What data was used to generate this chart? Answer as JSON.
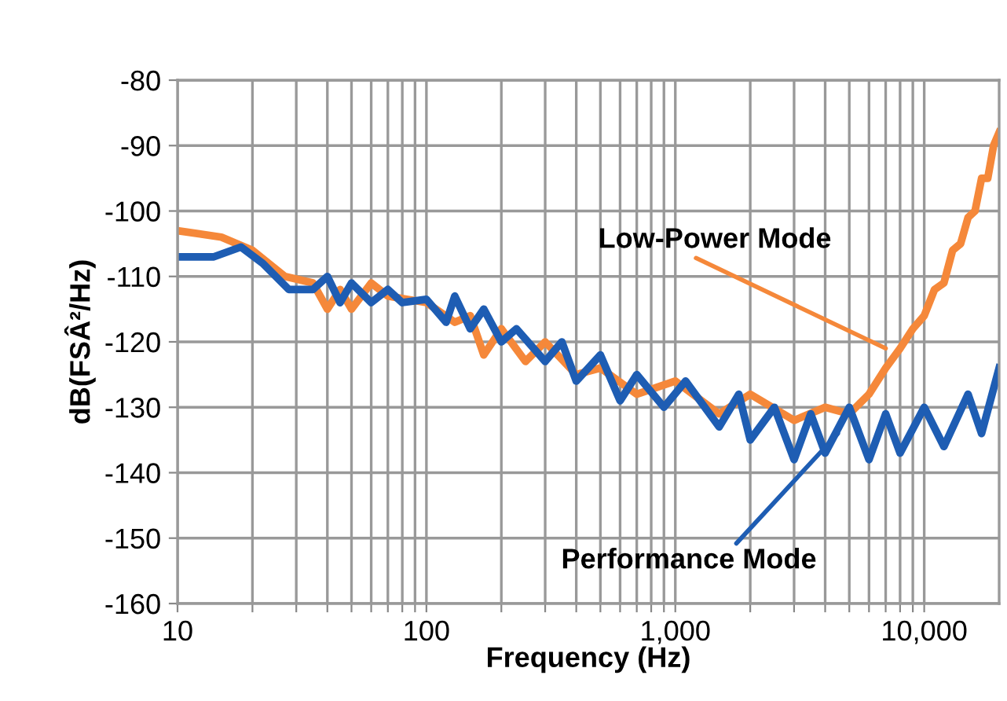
{
  "chart_data": {
    "type": "line",
    "xlabel": "Frequency (Hz)",
    "ylabel": "dB(FSÂ²/Hz)",
    "log": "x",
    "grid": true,
    "marker": "none",
    "line_style": "solid",
    "xlim": [
      10,
      20000
    ],
    "ylim": [
      -160,
      -80
    ],
    "xticks": [
      {
        "value": 10,
        "label": "10"
      },
      {
        "value": 20,
        "label": null
      },
      {
        "value": 30,
        "label": null
      },
      {
        "value": 40,
        "label": null
      },
      {
        "value": 50,
        "label": null
      },
      {
        "value": 60,
        "label": null
      },
      {
        "value": 70,
        "label": null
      },
      {
        "value": 80,
        "label": null
      },
      {
        "value": 90,
        "label": null
      },
      {
        "value": 100,
        "label": "100"
      },
      {
        "value": 200,
        "label": null
      },
      {
        "value": 300,
        "label": null
      },
      {
        "value": 400,
        "label": null
      },
      {
        "value": 500,
        "label": null
      },
      {
        "value": 600,
        "label": null
      },
      {
        "value": 700,
        "label": null
      },
      {
        "value": 800,
        "label": null
      },
      {
        "value": 900,
        "label": null
      },
      {
        "value": 1000,
        "label": "1,000"
      },
      {
        "value": 2000,
        "label": null
      },
      {
        "value": 3000,
        "label": null
      },
      {
        "value": 4000,
        "label": null
      },
      {
        "value": 5000,
        "label": null
      },
      {
        "value": 6000,
        "label": null
      },
      {
        "value": 7000,
        "label": null
      },
      {
        "value": 8000,
        "label": null
      },
      {
        "value": 9000,
        "label": null
      },
      {
        "value": 10000,
        "label": "10,000"
      }
    ],
    "yticks": [
      -160,
      -150,
      -140,
      -130,
      -120,
      -110,
      -100,
      -90,
      -80
    ],
    "series": [
      {
        "color": "#f5883a",
        "x": [
          10,
          15,
          20,
          27,
          35,
          40,
          45,
          50,
          60,
          70,
          100,
          130,
          150,
          170,
          200,
          250,
          300,
          400,
          500,
          700,
          1000,
          1500,
          2000,
          3000,
          4000,
          5000,
          6000,
          7000,
          8000,
          9000,
          10000,
          11000,
          12000,
          13000,
          14000,
          15000,
          16000,
          17000,
          18000,
          19000,
          20000
        ],
        "values": [
          -103,
          -104,
          -106,
          -110,
          -111,
          -115,
          -112,
          -115,
          -111,
          -113,
          -114,
          -117,
          -116,
          -122,
          -118,
          -123,
          -120,
          -125,
          -124,
          -128,
          -126,
          -131,
          -128,
          -132,
          -130,
          -131,
          -128,
          -124,
          -121,
          -118,
          -116,
          -112,
          -111,
          -106,
          -105,
          -101,
          -100,
          -95,
          -95,
          -90,
          -88
        ]
      },
      {
        "color": "#1e5db3",
        "x": [
          10,
          14,
          18,
          22,
          28,
          35,
          40,
          45,
          50,
          60,
          70,
          80,
          100,
          120,
          130,
          150,
          170,
          200,
          230,
          300,
          350,
          400,
          500,
          600,
          700,
          900,
          1100,
          1500,
          1800,
          2000,
          2500,
          3000,
          3500,
          4000,
          5000,
          6000,
          7000,
          8000,
          10000,
          12000,
          15000,
          17000,
          20000
        ],
        "values": [
          -107,
          -107,
          -105.5,
          -108,
          -112,
          -112,
          -110,
          -114,
          -111,
          -114,
          -112,
          -114,
          -113.5,
          -117,
          -113,
          -118,
          -115,
          -120,
          -118,
          -123,
          -120,
          -126,
          -122,
          -129,
          -125,
          -130,
          -126,
          -133,
          -128,
          -135,
          -130,
          -138,
          -131,
          -137,
          -130,
          -138,
          -131,
          -137,
          -130,
          -136,
          -128,
          -134,
          -124
        ]
      }
    ],
    "annotations": [
      {
        "text": "Low-Power Mode",
        "x": 7000,
        "y": -121
      },
      {
        "text": "Performance Mode",
        "x": 4500,
        "y": -134
      }
    ]
  }
}
